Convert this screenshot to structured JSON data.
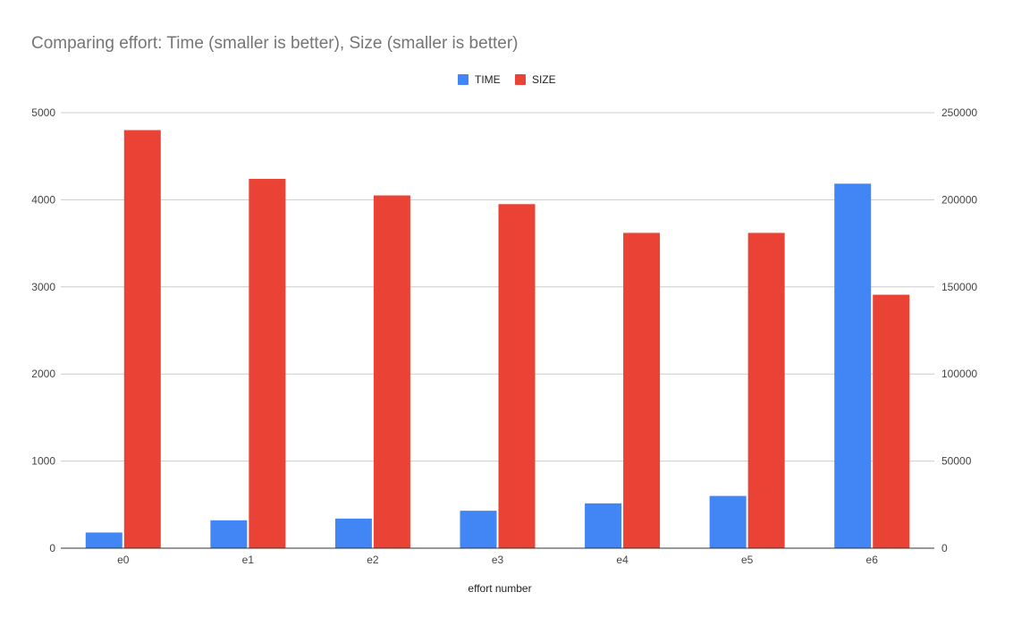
{
  "chart_data": {
    "type": "bar",
    "title": "Comparing effort: Time (smaller is better), Size (smaller is better)",
    "xlabel": "effort number",
    "ylabel": "",
    "y2label": "",
    "categories": [
      "e0",
      "e1",
      "e2",
      "e3",
      "e4",
      "e5",
      "e6"
    ],
    "series": [
      {
        "name": "TIME",
        "axis": "left",
        "color": "#4285f4",
        "values": [
          180,
          320,
          340,
          430,
          515,
          600,
          4185
        ]
      },
      {
        "name": "SIZE",
        "axis": "right",
        "color": "#ea4335",
        "values": [
          240000,
          212000,
          202500,
          197500,
          181000,
          181000,
          145500
        ]
      }
    ],
    "ylim": [
      0,
      5000
    ],
    "y2lim": [
      0,
      250000
    ],
    "y_ticks": [
      "0",
      "1000",
      "2000",
      "3000",
      "4000",
      "5000"
    ],
    "y2_ticks": [
      "0",
      "50000",
      "100000",
      "150000",
      "200000",
      "250000"
    ],
    "grid": true,
    "legend_position": "top-center"
  }
}
